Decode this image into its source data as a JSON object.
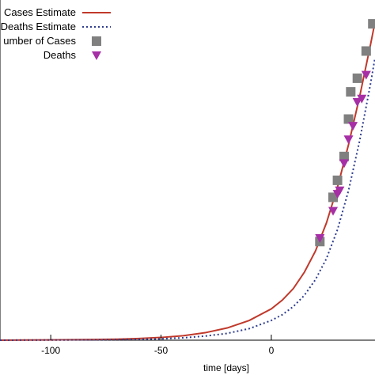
{
  "chart_data": {
    "type": "line",
    "title": "",
    "xlabel": "time [days]",
    "ylabel": "",
    "xlim": [
      -123,
      47
    ],
    "ylim": [
      0,
      1
    ],
    "grid": false,
    "legend_position": "top-left",
    "x_ticks": [
      -100,
      -50,
      0
    ],
    "x_tick_labels": [
      "-100",
      "-50",
      "0"
    ],
    "series": [
      {
        "name": "Cases Estimate",
        "legend_text": "Cases Estimate",
        "kind": "line",
        "style": "solid",
        "color": "#c0392b",
        "x": [
          -123,
          -110,
          -100,
          -90,
          -80,
          -70,
          -60,
          -50,
          -40,
          -30,
          -20,
          -10,
          0,
          5,
          10,
          15,
          20,
          25,
          30,
          35,
          40,
          45,
          47
        ],
        "y": [
          0.0,
          0.0005,
          0.001,
          0.0015,
          0.002,
          0.003,
          0.005,
          0.008,
          0.013,
          0.022,
          0.036,
          0.058,
          0.092,
          0.118,
          0.152,
          0.2,
          0.262,
          0.345,
          0.45,
          0.575,
          0.715,
          0.87,
          0.935
        ]
      },
      {
        "name": "Deaths Estimate",
        "legend_text": "Deaths Estimate",
        "kind": "line",
        "style": "dotted",
        "color": "#2e3d8f",
        "x": [
          -123,
          -100,
          -80,
          -60,
          -50,
          -40,
          -30,
          -20,
          -10,
          0,
          5,
          10,
          15,
          20,
          25,
          30,
          35,
          40,
          45,
          47
        ],
        "y": [
          0.0,
          0.0005,
          0.001,
          0.0025,
          0.004,
          0.007,
          0.012,
          0.02,
          0.034,
          0.058,
          0.075,
          0.099,
          0.132,
          0.178,
          0.24,
          0.325,
          0.44,
          0.585,
          0.755,
          0.83
        ]
      },
      {
        "name": "Number of Cases",
        "legend_text": "umber of Cases",
        "kind": "marker",
        "marker": "square",
        "color": "#808080",
        "x": [
          22,
          28,
          30,
          33,
          35,
          36,
          39,
          43,
          46
        ],
        "y": [
          0.29,
          0.42,
          0.47,
          0.54,
          0.65,
          0.73,
          0.77,
          0.85,
          0.93
        ]
      },
      {
        "name": "Deaths",
        "legend_text": "Deaths",
        "kind": "marker",
        "marker": "triangle-down",
        "color": "#a62fa6",
        "x": [
          22,
          28,
          30,
          31,
          33,
          35,
          37,
          39,
          41,
          43
        ],
        "y": [
          0.3,
          0.38,
          0.43,
          0.44,
          0.52,
          0.59,
          0.63,
          0.7,
          0.71,
          0.78
        ]
      }
    ]
  }
}
